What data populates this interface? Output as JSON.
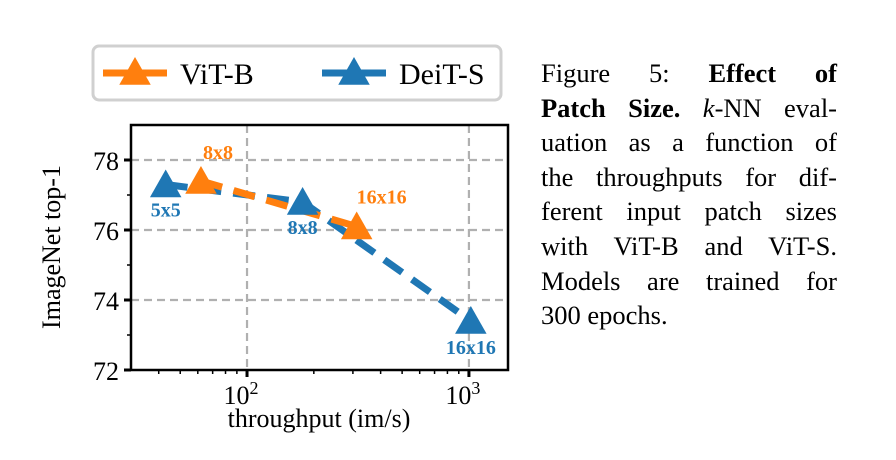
{
  "chart_data": {
    "type": "scatter",
    "title": "",
    "xlabel": "throughput (im/s)",
    "ylabel": "ImageNet top-1",
    "xscale": "log",
    "xlim": [
      30,
      1500
    ],
    "ylim": [
      72,
      79
    ],
    "yticks": [
      72,
      74,
      76,
      78
    ],
    "xticks": [
      {
        "value": 100,
        "base": "10",
        "exp": "2"
      },
      {
        "value": 1000,
        "base": "10",
        "exp": "3"
      }
    ],
    "grid": true,
    "legend": {
      "placement": "top",
      "entries": [
        "ViT-B",
        "DeiT-S"
      ]
    },
    "series": [
      {
        "name": "ViT-B",
        "color": "#ff7f0e",
        "marker": "triangle",
        "linestyle": "dashed",
        "points": [
          {
            "x": 62,
            "y": 77.4,
            "label": "8x8"
          },
          {
            "x": 312,
            "y": 76.1,
            "label": "16x16"
          }
        ]
      },
      {
        "name": "DeiT-S",
        "color": "#1f77b4",
        "marker": "triangle",
        "linestyle": "dashed",
        "points": [
          {
            "x": 43,
            "y": 77.3,
            "label": "5x5"
          },
          {
            "x": 178,
            "y": 76.8,
            "label": "8x8"
          },
          {
            "x": 1020,
            "y": 73.4,
            "label": "16x16"
          }
        ]
      }
    ]
  },
  "caption": {
    "lines": [
      [
        {
          "t": "Figure 5:  ",
          "s": "n"
        },
        {
          "t": "Effect of",
          "s": "b"
        }
      ],
      [
        {
          "t": "Patch Size.",
          "s": "b"
        },
        {
          "t": " ",
          "s": "n"
        },
        {
          "t": "k",
          "s": "i"
        },
        {
          "t": "-NN eval-",
          "s": "n"
        }
      ],
      [
        {
          "t": "uation as a function of",
          "s": "n"
        }
      ],
      [
        {
          "t": "the throughputs for dif-",
          "s": "n"
        }
      ],
      [
        {
          "t": "ferent input patch sizes",
          "s": "n"
        }
      ],
      [
        {
          "t": "with ViT-B and ViT-S.",
          "s": "n"
        }
      ],
      [
        {
          "t": "Models are trained for",
          "s": "n"
        }
      ],
      [
        {
          "t": "300 epochs.",
          "s": "n"
        }
      ]
    ]
  }
}
